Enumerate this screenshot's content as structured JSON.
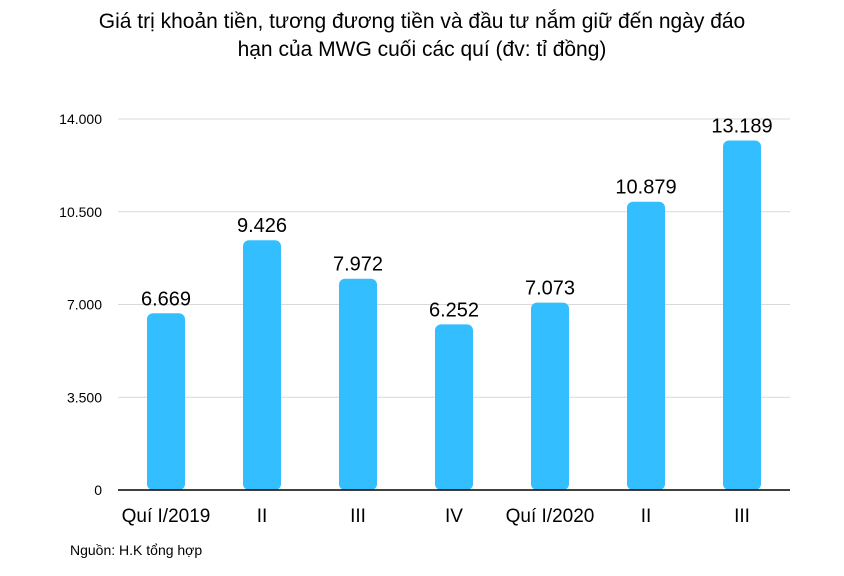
{
  "title_line1": "Giá trị khoản tiền, tương đương tiền và đầu tư nắm giữ đến ngày đáo",
  "title_line2": "hạn của MWG cuối các quí (đv: tỉ đồng)",
  "source": "Nguồn: H.K tổng hợp",
  "colors": {
    "bar": "#33bfff",
    "grid": "#d9d9d9",
    "axis": "#000000"
  },
  "chart_data": {
    "type": "bar",
    "title": "Giá trị khoản tiền, tương đương tiền và đầu tư nắm giữ đến ngày đáo hạn của MWG cuối các quí (đv: tỉ đồng)",
    "categories": [
      "Quí I/2019",
      "II",
      "III",
      "IV",
      "Quí I/2020",
      "II",
      "III"
    ],
    "values": [
      6669,
      9426,
      7972,
      6252,
      7073,
      10879,
      13189
    ],
    "value_labels": [
      "6.669",
      "9.426",
      "7.972",
      "6.252",
      "7.073",
      "10.879",
      "13.189"
    ],
    "y_ticks": [
      0,
      3500,
      7000,
      10500,
      14000
    ],
    "y_tick_labels": [
      "0",
      "3.500",
      "7.000",
      "10.500",
      "14.000"
    ],
    "ylim": [
      0,
      14000
    ],
    "grid": true
  }
}
